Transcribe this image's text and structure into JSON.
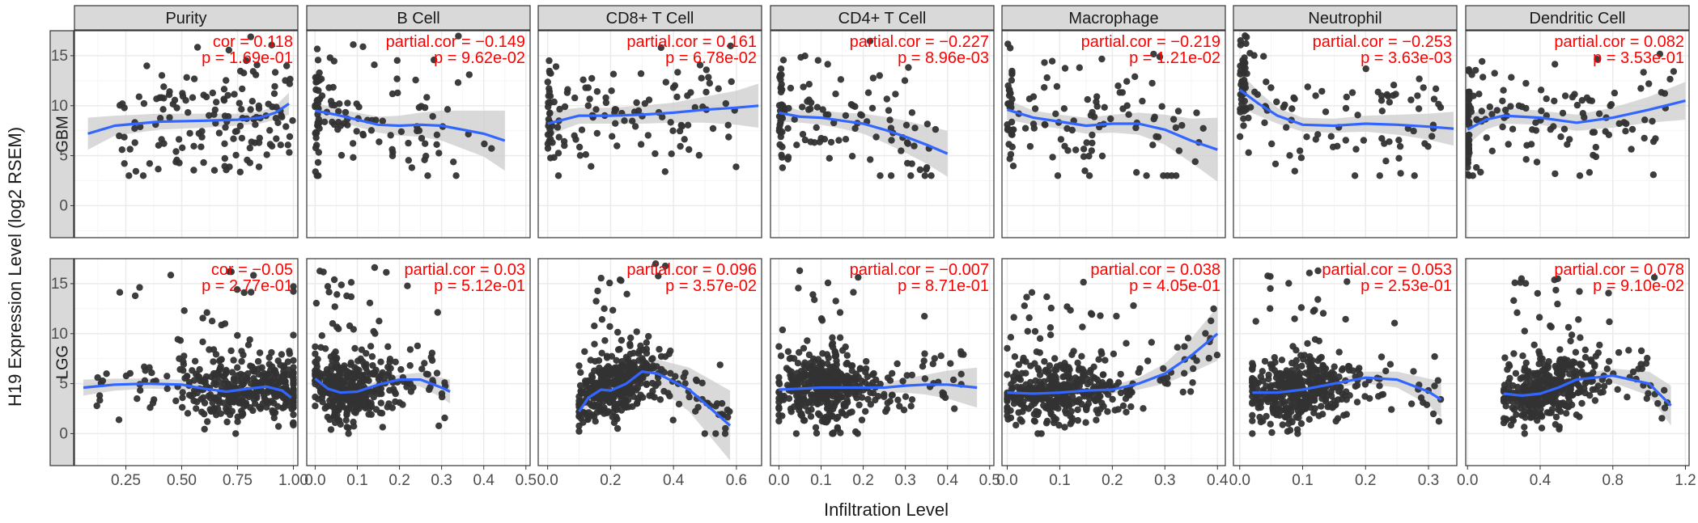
{
  "chart_data": {
    "type": "scatter",
    "ylabel": "H19 Expression Level (log2 RSEM)",
    "xlabel": "Infiltration Level",
    "ylim": [
      -3.2,
      17.5
    ],
    "yticks": [
      0,
      5,
      10,
      15
    ],
    "grid": true,
    "columns": [
      {
        "name": "Purity",
        "xlim": [
          0.02,
          1.02
        ],
        "xticks": [
          "0.25",
          "0.50",
          "0.75",
          "1.00"
        ],
        "xtick_values": [
          0.25,
          0.5,
          0.75,
          1.0
        ]
      },
      {
        "name": "B Cell",
        "xlim": [
          -0.02,
          0.51
        ],
        "xticks": [
          "0.0",
          "0.1",
          "0.2",
          "0.3",
          "0.4",
          "0.5"
        ],
        "xtick_values": [
          0,
          0.1,
          0.2,
          0.3,
          0.4,
          0.5
        ]
      },
      {
        "name": "CD8+ T Cell",
        "xlim": [
          -0.03,
          0.68
        ],
        "xticks": [
          "0.0",
          "0.2",
          "0.4",
          "0.6"
        ],
        "xtick_values": [
          0,
          0.2,
          0.4,
          0.6
        ]
      },
      {
        "name": "CD4+ T Cell",
        "xlim": [
          -0.02,
          0.51
        ],
        "xticks": [
          "0.0",
          "0.1",
          "0.2",
          "0.3",
          "0.4",
          "0.5"
        ],
        "xtick_values": [
          0,
          0.1,
          0.2,
          0.3,
          0.4,
          0.5
        ]
      },
      {
        "name": "Macrophage",
        "xlim": [
          -0.01,
          0.415
        ],
        "xticks": [
          "0.0",
          "0.1",
          "0.2",
          "0.3",
          "0.4"
        ],
        "xtick_values": [
          0,
          0.1,
          0.2,
          0.3,
          0.4
        ]
      },
      {
        "name": "Neutrophil",
        "xlim": [
          -0.01,
          0.345
        ],
        "xticks": [
          "0.0",
          "0.1",
          "0.2",
          "0.3"
        ],
        "xtick_values": [
          0,
          0.1,
          0.2,
          0.3
        ]
      },
      {
        "name": "Dendritic Cell",
        "xlim": [
          -0.01,
          1.22
        ],
        "xticks": [
          "0.0",
          "0.4",
          "0.8",
          "1.2"
        ],
        "xtick_values": [
          0,
          0.4,
          0.8,
          1.2
        ]
      }
    ],
    "rows": [
      {
        "name": "GBM",
        "panels": [
          {
            "cor_label": "cor = 0.118",
            "p_label": "p = 1.69e-01",
            "fit": [
              [
                0.08,
                7.2
              ],
              [
                0.2,
                8.0
              ],
              [
                0.4,
                8.4
              ],
              [
                0.6,
                8.5
              ],
              [
                0.75,
                8.6
              ],
              [
                0.85,
                8.8
              ],
              [
                0.92,
                9.3
              ],
              [
                0.98,
                10.2
              ]
            ],
            "ci": [
              1.6,
              1.0,
              0.8,
              0.7,
              0.6,
              0.6,
              0.7,
              1.1
            ],
            "x_range": [
              0.1,
              1.0
            ],
            "n": 150
          },
          {
            "cor_label": "partial.cor = −0.149",
            "p_label": "p = 9.62e-02",
            "fit": [
              [
                0.0,
                9.5
              ],
              [
                0.05,
                9.1
              ],
              [
                0.1,
                8.6
              ],
              [
                0.15,
                8.1
              ],
              [
                0.2,
                8.0
              ],
              [
                0.25,
                8.1
              ],
              [
                0.3,
                8.0
              ],
              [
                0.35,
                7.6
              ],
              [
                0.4,
                7.2
              ],
              [
                0.45,
                6.5
              ]
            ],
            "ci": [
              0.8,
              0.6,
              0.7,
              0.8,
              1.0,
              1.2,
              1.5,
              1.9,
              2.3,
              3.0
            ],
            "x_range": [
              0.0,
              0.42
            ],
            "n": 120
          },
          {
            "cor_label": "partial.cor = 0.161",
            "p_label": "p = 6.78e-02",
            "fit": [
              [
                0.0,
                8.2
              ],
              [
                0.05,
                8.6
              ],
              [
                0.1,
                9.0
              ],
              [
                0.2,
                9.0
              ],
              [
                0.3,
                9.1
              ],
              [
                0.4,
                9.3
              ],
              [
                0.5,
                9.6
              ],
              [
                0.6,
                9.8
              ],
              [
                0.67,
                10.0
              ]
            ],
            "ci": [
              1.2,
              1.0,
              0.8,
              0.8,
              0.9,
              1.0,
              1.3,
              1.7,
              2.2
            ],
            "x_range": [
              0.0,
              0.6
            ],
            "n": 130
          },
          {
            "cor_label": "partial.cor = −0.227",
            "p_label": "p = 8.96e-03",
            "fit": [
              [
                0.0,
                9.3
              ],
              [
                0.05,
                8.9
              ],
              [
                0.1,
                8.8
              ],
              [
                0.15,
                8.5
              ],
              [
                0.2,
                8.2
              ],
              [
                0.25,
                7.6
              ],
              [
                0.3,
                6.9
              ],
              [
                0.35,
                6.1
              ],
              [
                0.4,
                5.2
              ]
            ],
            "ci": [
              0.9,
              0.6,
              0.7,
              0.8,
              1.0,
              1.3,
              1.6,
              1.9,
              2.3
            ],
            "x_range": [
              0.0,
              0.38
            ],
            "n": 120
          },
          {
            "cor_label": "partial.cor = −0.219",
            "p_label": "p = 1.21e-02",
            "fit": [
              [
                0.0,
                9.6
              ],
              [
                0.05,
                8.8
              ],
              [
                0.1,
                8.4
              ],
              [
                0.15,
                8.0
              ],
              [
                0.2,
                8.2
              ],
              [
                0.25,
                8.2
              ],
              [
                0.3,
                7.6
              ],
              [
                0.35,
                6.5
              ],
              [
                0.4,
                5.6
              ]
            ],
            "ci": [
              1.0,
              0.7,
              0.7,
              0.8,
              0.9,
              1.1,
              1.5,
              2.2,
              3.2
            ],
            "x_range": [
              0.0,
              0.38
            ],
            "n": 120
          },
          {
            "cor_label": "partial.cor = −0.253",
            "p_label": "p = 3.63e-03",
            "fit": [
              [
                0.0,
                11.6
              ],
              [
                0.03,
                10.2
              ],
              [
                0.06,
                9.0
              ],
              [
                0.1,
                8.1
              ],
              [
                0.15,
                8.0
              ],
              [
                0.2,
                8.2
              ],
              [
                0.25,
                8.1
              ],
              [
                0.3,
                7.9
              ],
              [
                0.34,
                7.7
              ]
            ],
            "ci": [
              1.8,
              1.2,
              0.8,
              0.7,
              0.7,
              0.8,
              1.0,
              1.3,
              1.7
            ],
            "x_range": [
              0.0,
              0.32
            ],
            "n": 130
          },
          {
            "cor_label": "partial.cor = 0.082",
            "p_label": "p = 3.53e-01",
            "fit": [
              [
                0.0,
                7.6
              ],
              [
                0.1,
                8.6
              ],
              [
                0.2,
                9.0
              ],
              [
                0.4,
                8.8
              ],
              [
                0.6,
                8.3
              ],
              [
                0.8,
                8.8
              ],
              [
                1.0,
                9.6
              ],
              [
                1.2,
                10.5
              ]
            ],
            "ci": [
              1.5,
              1.0,
              0.8,
              0.7,
              0.8,
              1.0,
              1.3,
              1.9
            ],
            "x_range": [
              0.0,
              1.15
            ],
            "n": 140
          }
        ]
      },
      {
        "name": "LGG",
        "panels": [
          {
            "cor_label": "cor = −0.05",
            "p_label": "p = 2.77e-01",
            "fit": [
              [
                0.06,
                4.6
              ],
              [
                0.2,
                4.9
              ],
              [
                0.35,
                5.0
              ],
              [
                0.5,
                4.9
              ],
              [
                0.6,
                4.5
              ],
              [
                0.7,
                4.2
              ],
              [
                0.8,
                4.5
              ],
              [
                0.88,
                4.7
              ],
              [
                0.95,
                4.3
              ],
              [
                0.99,
                3.6
              ]
            ],
            "ci": [
              0.8,
              0.6,
              0.5,
              0.5,
              0.4,
              0.3,
              0.3,
              0.4,
              0.5,
              0.7
            ],
            "x_range": [
              0.1,
              1.0
            ],
            "n": 420
          },
          {
            "cor_label": "partial.cor = 0.03",
            "p_label": "p = 5.12e-01",
            "fit": [
              [
                0.0,
                5.5
              ],
              [
                0.03,
                4.5
              ],
              [
                0.06,
                4.1
              ],
              [
                0.1,
                4.2
              ],
              [
                0.15,
                4.9
              ],
              [
                0.2,
                5.4
              ],
              [
                0.25,
                5.4
              ],
              [
                0.3,
                4.6
              ],
              [
                0.32,
                4.2
              ]
            ],
            "ci": [
              0.9,
              0.4,
              0.3,
              0.3,
              0.4,
              0.5,
              0.7,
              1.0,
              1.2
            ],
            "x_range": [
              0.0,
              0.31
            ],
            "n": 420
          },
          {
            "cor_label": "partial.cor = 0.096",
            "p_label": "p = 3.57e-02",
            "fit": [
              [
                0.1,
                2.2
              ],
              [
                0.13,
                3.6
              ],
              [
                0.17,
                4.4
              ],
              [
                0.2,
                4.3
              ],
              [
                0.25,
                5.0
              ],
              [
                0.3,
                6.2
              ],
              [
                0.35,
                6.0
              ],
              [
                0.45,
                4.4
              ],
              [
                0.58,
                0.8
              ]
            ],
            "ci": [
              1.5,
              0.8,
              0.5,
              0.4,
              0.6,
              1.0,
              1.4,
              2.2,
              3.5
            ],
            "x_range": [
              0.1,
              0.58
            ],
            "n": 420
          },
          {
            "cor_label": "partial.cor = −0.007",
            "p_label": "p = 8.71e-01",
            "fit": [
              [
                0.0,
                4.4
              ],
              [
                0.05,
                4.5
              ],
              [
                0.1,
                4.6
              ],
              [
                0.15,
                4.6
              ],
              [
                0.2,
                4.6
              ],
              [
                0.25,
                4.6
              ],
              [
                0.3,
                4.8
              ],
              [
                0.35,
                4.9
              ],
              [
                0.4,
                4.9
              ],
              [
                0.47,
                4.6
              ]
            ],
            "ci": [
              0.5,
              0.4,
              0.3,
              0.3,
              0.4,
              0.5,
              0.7,
              1.0,
              1.4,
              2.0
            ],
            "x_range": [
              0.0,
              0.45
            ],
            "n": 420
          },
          {
            "cor_label": "partial.cor = 0.038",
            "p_label": "p = 4.05e-01",
            "fit": [
              [
                0.0,
                4.1
              ],
              [
                0.05,
                4.0
              ],
              [
                0.1,
                4.1
              ],
              [
                0.15,
                4.3
              ],
              [
                0.2,
                4.4
              ],
              [
                0.25,
                5.0
              ],
              [
                0.3,
                6.0
              ],
              [
                0.35,
                7.8
              ],
              [
                0.4,
                10.0
              ]
            ],
            "ci": [
              0.5,
              0.3,
              0.3,
              0.3,
              0.4,
              0.6,
              1.0,
              1.7,
              2.7
            ],
            "x_range": [
              0.0,
              0.4
            ],
            "n": 420
          },
          {
            "cor_label": "partial.cor = 0.053",
            "p_label": "p = 2.53e-01",
            "fit": [
              [
                0.02,
                4.1
              ],
              [
                0.06,
                4.1
              ],
              [
                0.1,
                4.4
              ],
              [
                0.15,
                5.0
              ],
              [
                0.2,
                5.6
              ],
              [
                0.25,
                5.4
              ],
              [
                0.3,
                4.2
              ],
              [
                0.32,
                3.4
              ]
            ],
            "ci": [
              0.5,
              0.3,
              0.3,
              0.4,
              0.6,
              0.8,
              1.3,
              1.8
            ],
            "x_range": [
              0.02,
              0.32
            ],
            "n": 420
          },
          {
            "cor_label": "partial.cor = 0.078",
            "p_label": "p = 9.10e-02",
            "fit": [
              [
                0.2,
                4.0
              ],
              [
                0.3,
                3.8
              ],
              [
                0.4,
                4.0
              ],
              [
                0.5,
                4.6
              ],
              [
                0.6,
                5.4
              ],
              [
                0.8,
                5.8
              ],
              [
                1.0,
                5.0
              ],
              [
                1.12,
                2.8
              ]
            ],
            "ci": [
              0.8,
              0.4,
              0.3,
              0.4,
              0.5,
              0.7,
              1.2,
              2.0
            ],
            "x_range": [
              0.2,
              1.12
            ],
            "n": 420
          }
        ]
      }
    ]
  },
  "colors": {
    "point": "#333333",
    "fit_line": "#3366ff",
    "ci_band": "#cccccc",
    "stat_text": "#ff0000",
    "strip_fill": "#d9d9d9",
    "panel_border": "#333333",
    "grid_major": "#ebebeb",
    "grid_minor": "#f5f5f5"
  }
}
